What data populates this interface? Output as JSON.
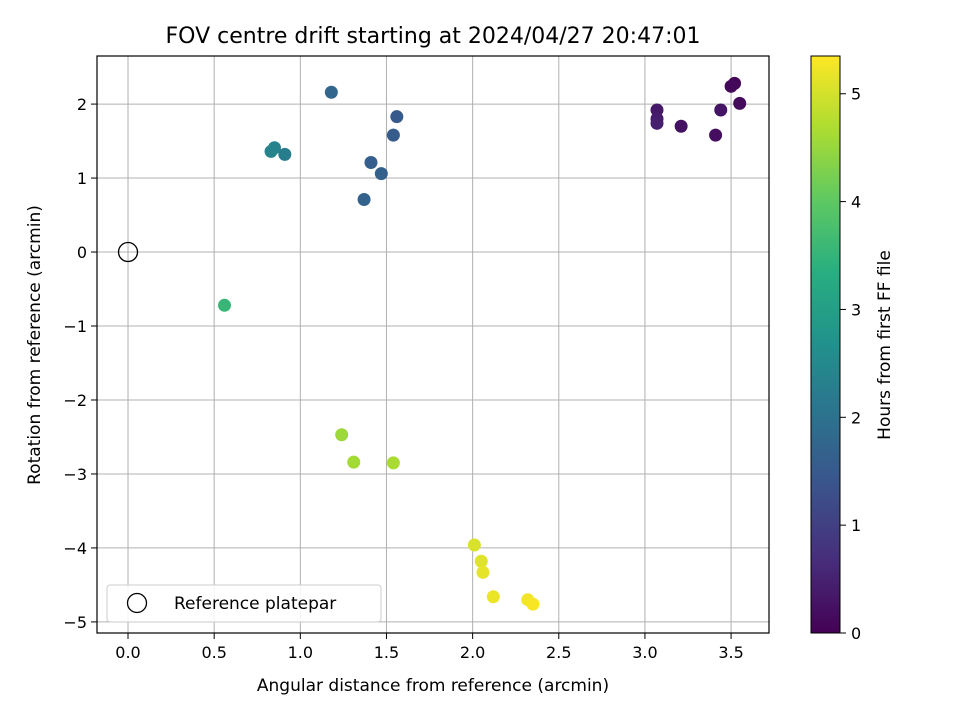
{
  "chart_data": {
    "type": "scatter",
    "title": "FOV centre drift starting at 2024/04/27 20:47:01",
    "xlabel": "Angular distance from reference (arcmin)",
    "ylabel": "Rotation from reference (arcmin)",
    "colorbar_label": "Hours from first FF file",
    "colormap": "viridis",
    "xlim": [
      -0.18,
      3.72
    ],
    "ylim": [
      -5.15,
      2.65
    ],
    "clim": [
      0,
      5.35
    ],
    "xticks": [
      0.0,
      0.5,
      1.0,
      1.5,
      2.0,
      2.5,
      3.0,
      3.5
    ],
    "xtick_labels": [
      "0.0",
      "0.5",
      "1.0",
      "1.5",
      "2.0",
      "2.5",
      "3.0",
      "3.5"
    ],
    "yticks": [
      2,
      1,
      0,
      -1,
      -2,
      -3,
      -4,
      -5
    ],
    "ytick_labels": [
      "2",
      "1",
      "0",
      "−1",
      "−2",
      "−3",
      "−4",
      "−5"
    ],
    "cticks": [
      0,
      1,
      2,
      3,
      4,
      5
    ],
    "ctick_labels": [
      "0",
      "1",
      "2",
      "3",
      "4",
      "5"
    ],
    "grid": true,
    "legend": {
      "position": "lower-left",
      "entries": [
        "Reference platepar"
      ]
    },
    "reference_point": {
      "x": 0.0,
      "y": 0.0
    },
    "points": [
      {
        "x": 3.52,
        "y": 2.28,
        "hours": 0.05
      },
      {
        "x": 3.5,
        "y": 2.24,
        "hours": 0.1
      },
      {
        "x": 3.55,
        "y": 2.01,
        "hours": 0.15
      },
      {
        "x": 3.44,
        "y": 1.92,
        "hours": 0.3
      },
      {
        "x": 3.41,
        "y": 1.58,
        "hours": 0.2
      },
      {
        "x": 3.21,
        "y": 1.7,
        "hours": 0.25
      },
      {
        "x": 3.07,
        "y": 1.92,
        "hours": 0.35
      },
      {
        "x": 3.07,
        "y": 1.8,
        "hours": 0.4
      },
      {
        "x": 3.07,
        "y": 1.74,
        "hours": 0.45
      },
      {
        "x": 1.56,
        "y": 1.83,
        "hours": 1.5
      },
      {
        "x": 1.54,
        "y": 1.58,
        "hours": 1.55
      },
      {
        "x": 1.41,
        "y": 1.21,
        "hours": 1.6
      },
      {
        "x": 1.47,
        "y": 1.06,
        "hours": 1.65
      },
      {
        "x": 1.37,
        "y": 0.71,
        "hours": 1.7
      },
      {
        "x": 1.18,
        "y": 2.16,
        "hours": 1.75
      },
      {
        "x": 0.91,
        "y": 1.32,
        "hours": 2.25
      },
      {
        "x": 0.85,
        "y": 1.41,
        "hours": 2.35
      },
      {
        "x": 0.83,
        "y": 1.36,
        "hours": 2.4
      },
      {
        "x": 0.56,
        "y": -0.72,
        "hours": 3.55
      },
      {
        "x": 1.24,
        "y": -2.47,
        "hours": 4.55
      },
      {
        "x": 1.31,
        "y": -2.84,
        "hours": 4.6
      },
      {
        "x": 1.54,
        "y": -2.85,
        "hours": 4.65
      },
      {
        "x": 2.01,
        "y": -3.96,
        "hours": 5.05
      },
      {
        "x": 2.05,
        "y": -4.18,
        "hours": 5.1
      },
      {
        "x": 2.06,
        "y": -4.33,
        "hours": 5.15
      },
      {
        "x": 2.12,
        "y": -4.66,
        "hours": 5.2
      },
      {
        "x": 2.32,
        "y": -4.7,
        "hours": 5.25
      },
      {
        "x": 2.35,
        "y": -4.76,
        "hours": 5.3
      }
    ]
  }
}
